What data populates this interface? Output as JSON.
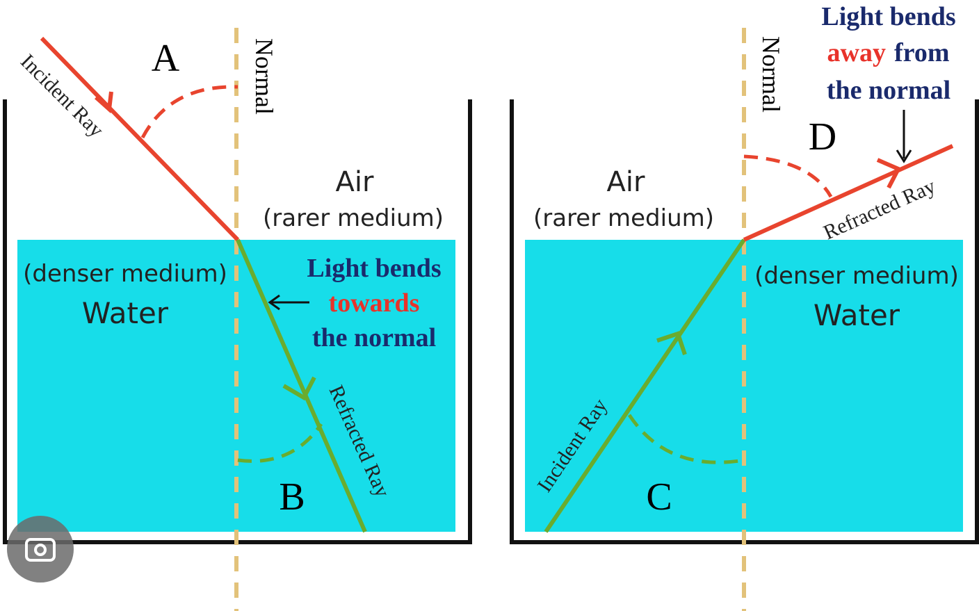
{
  "panels": [
    {
      "angle_air": "A",
      "angle_water": "B",
      "normal": "Normal",
      "incident_ray": "Incident Ray",
      "refracted_ray": "Refracted Ray",
      "air": "Air",
      "air_note": "(rarer medium)",
      "water": "Water",
      "water_note": "(denser medium)",
      "note": [
        "Light bends",
        "towards",
        "the normal"
      ]
    },
    {
      "angle_air": "D",
      "angle_water": "C",
      "normal": "Normal",
      "incident_ray": "Incident Ray",
      "refracted_ray": "Refracted Ray",
      "air": "Air",
      "air_note": "(rarer medium)",
      "water": "Water",
      "water_note": "(denser medium)",
      "note": [
        "Light bends",
        "away",
        "from",
        "the normal"
      ]
    }
  ]
}
